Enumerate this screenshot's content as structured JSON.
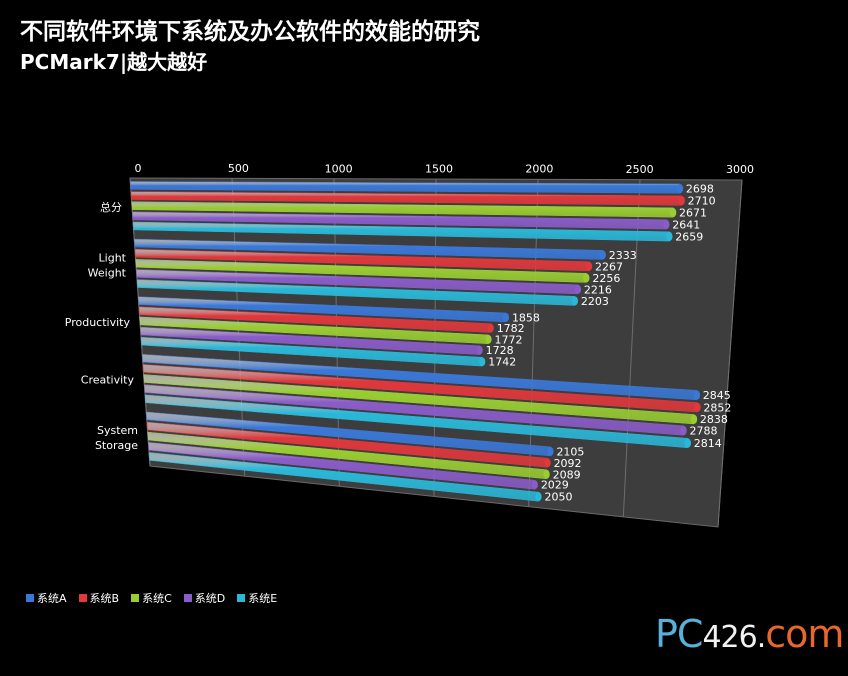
{
  "title": "不同软件环境下系统及办公软件的效能的研究",
  "subtitle": "PCMark7|越大越好",
  "colors": {
    "series": [
      "#3a78d8",
      "#e0383c",
      "#9acd32",
      "#8a5cc8",
      "#2ab8d8"
    ],
    "background": "#000000",
    "plot_wall": "#3d3d3d"
  },
  "chart_data": {
    "type": "bar",
    "orientation": "horizontal",
    "categories": [
      "总分",
      "Light Weight",
      "Productivity",
      "Creativity",
      "System Storage"
    ],
    "series": [
      {
        "name": "系统A",
        "values": [
          2698,
          2333,
          1858,
          2845,
          2105
        ]
      },
      {
        "name": "系统B",
        "values": [
          2710,
          2267,
          1782,
          2852,
          2092
        ]
      },
      {
        "name": "系统C",
        "values": [
          2671,
          2256,
          1772,
          2838,
          2089
        ]
      },
      {
        "name": "系统D",
        "values": [
          2641,
          2216,
          1728,
          2788,
          2029
        ]
      },
      {
        "name": "系统E",
        "values": [
          2659,
          2203,
          1742,
          2814,
          2050
        ]
      }
    ],
    "xlim": [
      0,
      3000
    ],
    "xticks": [
      "0",
      "500",
      "1000",
      "1500",
      "2000",
      "2500",
      "3000"
    ],
    "grid": true,
    "legend_position": "bottom-left"
  },
  "watermark": {
    "part1": "PC",
    "part2": "426.",
    "part3": "com"
  }
}
